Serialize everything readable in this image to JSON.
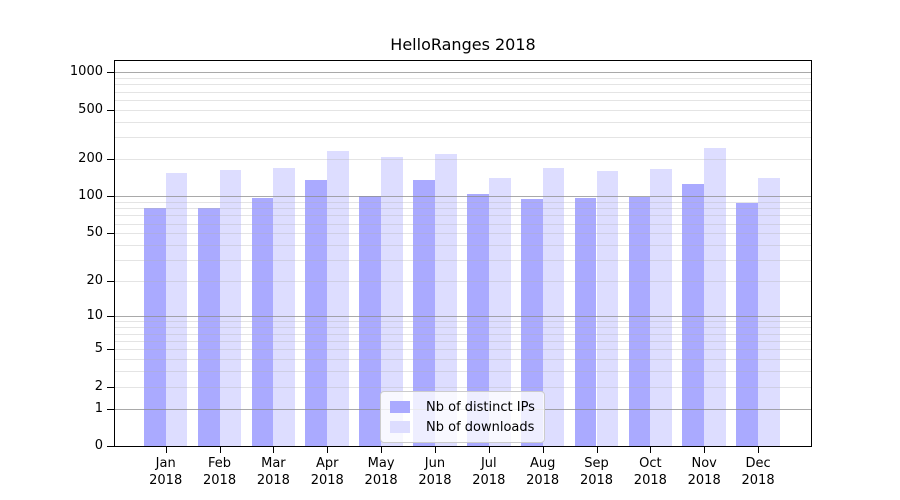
{
  "title": "HelloRanges 2018",
  "chart_data": {
    "type": "bar",
    "title": "HelloRanges 2018",
    "categories": [
      "Jan",
      "Feb",
      "Mar",
      "Apr",
      "May",
      "Jun",
      "Jul",
      "Aug",
      "Sep",
      "Oct",
      "Nov",
      "Dec"
    ],
    "year_label": "2018",
    "series": [
      {
        "name": "Nb of distinct IPs",
        "color": "#aaaaff",
        "values": [
          80,
          80,
          97,
          136,
          100,
          136,
          105,
          96,
          97,
          99,
          127,
          88
        ]
      },
      {
        "name": "Nb of downloads",
        "color": "#ddddff",
        "values": [
          154,
          163,
          169,
          233,
          207,
          222,
          142,
          169,
          162,
          168,
          245,
          142
        ]
      }
    ],
    "xlabel": "",
    "ylabel": "",
    "yscale": "log1p",
    "ylim": [
      0,
      1234
    ],
    "ytick_values": [
      1000,
      500,
      200,
      100,
      50,
      20,
      10,
      5,
      2,
      1,
      0
    ],
    "ytick_labels": [
      "1000",
      "500",
      "200",
      "100",
      "50",
      "20",
      "10",
      "5",
      "2",
      "1",
      "0"
    ],
    "major_gridlines": [
      1,
      10,
      100,
      1000
    ],
    "minor_gridlines": [
      2,
      3,
      4,
      5,
      6,
      7,
      8,
      9,
      20,
      30,
      40,
      50,
      60,
      70,
      80,
      90,
      200,
      300,
      400,
      500,
      600,
      700,
      800,
      900
    ],
    "grid": true,
    "legend_position": "lower center"
  }
}
